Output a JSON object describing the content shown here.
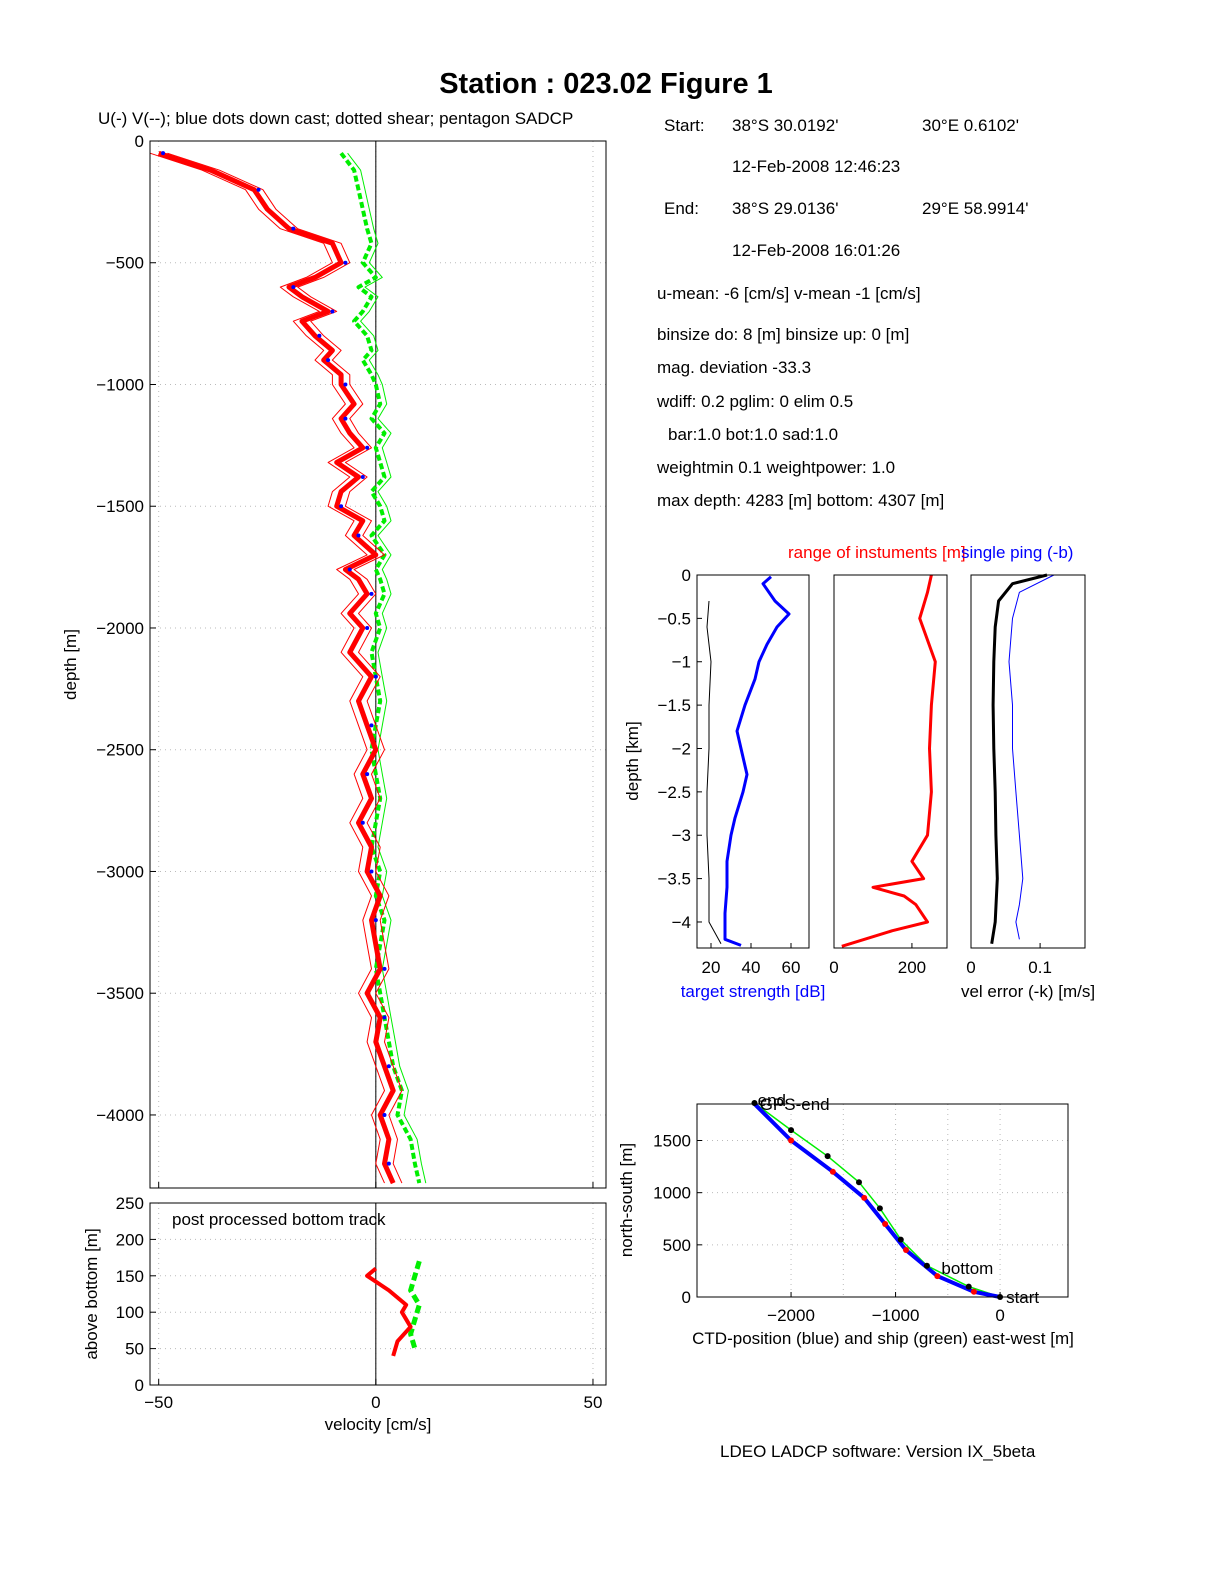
{
  "title": "Station : 023.02  Figure 1",
  "footer": "LDEO LADCP software: Version IX_5beta",
  "info": {
    "start_label": "Start:",
    "start_lat": "38°S 30.0192'",
    "start_lon": "30°E  0.6102'",
    "start_time": "12-Feb-2008 12:46:23",
    "end_label": "End:",
    "end_lat": "38°S 29.0136'",
    "end_lon": "29°E 58.9914'",
    "end_time": "12-Feb-2008 16:01:26",
    "means": "u-mean:  -6 [cm/s]    v-mean  -1 [cm/s]",
    "binsize": "binsize do: 8 [m]  binsize up:  0 [m]",
    "magdev": "mag. deviation -33.3",
    "wdiff": "wdiff: 0.2  pglim: 0  elim 0.5",
    "bar": "bar:1.0 bot:1.0 sad:1.0",
    "weight": "weightmin 0.1  weightpower: 1.0",
    "depth": "max depth: 4283 [m]   bottom: 4307 [m]"
  },
  "colors": {
    "u": "#ff0000",
    "v": "#00ee00",
    "down": "#0000ff",
    "black": "#000000"
  },
  "chart_data": [
    {
      "type": "line",
      "panel": "velocity-profile",
      "title": "U(-) V(--); blue dots down cast; dotted shear; pentagon SADCP",
      "xlabel": "velocity [cm/s]",
      "ylabel": "depth [m]",
      "xlim": [
        -52,
        53
      ],
      "ylim": [
        -4300,
        0
      ],
      "xticks": [
        -50,
        0,
        50
      ],
      "yticks": [
        0,
        -500,
        -1000,
        -1500,
        -2000,
        -2500,
        -3000,
        -3500,
        -4000
      ],
      "grid": true,
      "series": [
        {
          "key": "U",
          "color": "#ff0000",
          "depth": [
            -50,
            -120,
            -200,
            -280,
            -360,
            -420,
            -500,
            -560,
            -600,
            -640,
            -700,
            -740,
            -800,
            -860,
            -900,
            -960,
            -1000,
            -1080,
            -1140,
            -1200,
            -1260,
            -1320,
            -1380,
            -1440,
            -1500,
            -1560,
            -1620,
            -1700,
            -1760,
            -1800,
            -1860,
            -1940,
            -2000,
            -2100,
            -2200,
            -2300,
            -2400,
            -2500,
            -2600,
            -2700,
            -2800,
            -2900,
            -3000,
            -3100,
            -3200,
            -3300,
            -3400,
            -3500,
            -3600,
            -3700,
            -3800,
            -3900,
            -4000,
            -4100,
            -4200,
            -4280
          ],
          "u": [
            -50,
            -38,
            -28,
            -25,
            -20,
            -10,
            -8,
            -14,
            -20,
            -17,
            -11,
            -17,
            -14,
            -10,
            -12,
            -8,
            -8,
            -5,
            -8,
            -6,
            -3,
            -9,
            -4,
            -8,
            -9,
            -3,
            -5,
            0,
            -7,
            -4,
            -2,
            -6,
            -3,
            -6,
            -1,
            -4,
            -2,
            0,
            -3,
            -1,
            -4,
            -1,
            -2,
            1,
            -1,
            0,
            1,
            -2,
            1,
            0,
            2,
            4,
            1,
            3,
            2,
            4
          ]
        },
        {
          "key": "V",
          "color": "#00ee00",
          "depth": [
            -50,
            -120,
            -200,
            -280,
            -360,
            -420,
            -500,
            -560,
            -600,
            -640,
            -700,
            -740,
            -800,
            -860,
            -900,
            -960,
            -1000,
            -1080,
            -1140,
            -1200,
            -1260,
            -1320,
            -1380,
            -1440,
            -1500,
            -1560,
            -1620,
            -1700,
            -1760,
            -1800,
            -1860,
            -1940,
            -2000,
            -2100,
            -2200,
            -2300,
            -2400,
            -2500,
            -2600,
            -2700,
            -2800,
            -2900,
            -3000,
            -3100,
            -3200,
            -3300,
            -3400,
            -3500,
            -3600,
            -3700,
            -3800,
            -3900,
            -4000,
            -4100,
            -4200,
            -4280
          ],
          "v": [
            -8,
            -5,
            -4,
            -3,
            -2,
            -1,
            -3,
            0,
            -4,
            -1,
            -3,
            -5,
            -2,
            -1,
            -3,
            -1,
            0,
            1,
            -1,
            2,
            0,
            1,
            2,
            -1,
            1,
            2,
            -1,
            2,
            0,
            1,
            2,
            0,
            1,
            -1,
            0,
            1,
            0,
            -1,
            0,
            1,
            0,
            -1,
            1,
            0,
            2,
            1,
            0,
            1,
            2,
            3,
            4,
            6,
            5,
            8,
            9,
            10
          ]
        }
      ]
    },
    {
      "type": "line",
      "panel": "bottom-track",
      "title": "post processed bottom track",
      "ylabel": "above bottom [m]",
      "xlim": [
        -52,
        53
      ],
      "ylim": [
        0,
        250
      ],
      "yticks": [
        0,
        50,
        100,
        150,
        200,
        250
      ],
      "series": [
        {
          "key": "U",
          "height": [
            160,
            150,
            130,
            110,
            100,
            80,
            60,
            40
          ],
          "u": [
            0,
            -2,
            3,
            7,
            6,
            8,
            5,
            4
          ]
        },
        {
          "key": "V",
          "height": [
            170,
            150,
            130,
            110,
            90,
            70,
            50
          ],
          "v": [
            10,
            9,
            8,
            10,
            9,
            8,
            9
          ]
        }
      ]
    },
    {
      "type": "line",
      "panel": "target-strength",
      "xlabel": "target strength [dB]",
      "ylabel": "depth [km]",
      "xlim": [
        13,
        69
      ],
      "ylim": [
        -4.3,
        0
      ],
      "xticks": [
        20,
        40,
        60
      ],
      "yticks": [
        0,
        -0.5,
        -1,
        -1.5,
        -2,
        -2.5,
        -3,
        -3.5,
        -4
      ],
      "series": [
        {
          "key": "target",
          "color": "#0000ff",
          "depth": [
            -0.02,
            -0.1,
            -0.3,
            -0.45,
            -0.6,
            -0.8,
            -1.0,
            -1.2,
            -1.5,
            -1.8,
            -2.0,
            -2.3,
            -2.5,
            -2.8,
            -3.0,
            -3.3,
            -3.6,
            -3.9,
            -4.2,
            -4.27
          ],
          "value": [
            50,
            46,
            52,
            59,
            53,
            48,
            44,
            42,
            37,
            33,
            35,
            38,
            36,
            32,
            30,
            28,
            28,
            27,
            27,
            35
          ]
        },
        {
          "key": "range-ref",
          "color": "#000000",
          "depth": [
            -0.3,
            -0.6,
            -1.0,
            -1.5,
            -2.0,
            -2.5,
            -3.0,
            -3.5,
            -4.0,
            -4.25
          ],
          "value": [
            19,
            18,
            20,
            19,
            19,
            18,
            18,
            19,
            19,
            25
          ]
        }
      ]
    },
    {
      "type": "line",
      "panel": "range",
      "title": "range of instuments [m]",
      "xlim": [
        0,
        290
      ],
      "ylim": [
        -4.3,
        0
      ],
      "xticks": [
        0,
        200
      ],
      "series": [
        {
          "key": "range",
          "color": "#ff0000",
          "depth": [
            0,
            -0.2,
            -0.5,
            -1.0,
            -1.5,
            -2.0,
            -2.5,
            -3.0,
            -3.3,
            -3.5,
            -3.6,
            -3.7,
            -3.8,
            -4.0,
            -4.1,
            -4.28
          ],
          "value": [
            250,
            240,
            220,
            260,
            250,
            245,
            250,
            240,
            200,
            230,
            100,
            180,
            210,
            240,
            150,
            20
          ]
        }
      ]
    },
    {
      "type": "line",
      "panel": "vel-error",
      "title": "single ping (-b)",
      "xlabel": "vel error (-k) [m/s]",
      "xlim": [
        0,
        0.165
      ],
      "ylim": [
        -4.3,
        0
      ],
      "xticks": [
        0,
        0.1
      ],
      "series": [
        {
          "key": "vel-error",
          "color": "#000000",
          "depth": [
            0,
            -0.1,
            -0.3,
            -0.6,
            -1.0,
            -1.5,
            -2.0,
            -2.5,
            -3.0,
            -3.5,
            -4.0,
            -4.25
          ],
          "value": [
            0.11,
            0.06,
            0.04,
            0.035,
            0.033,
            0.032,
            0.033,
            0.035,
            0.036,
            0.038,
            0.035,
            0.03
          ]
        },
        {
          "key": "single-ping",
          "color": "#0000ff",
          "depth": [
            0,
            -0.2,
            -0.5,
            -1.0,
            -1.5,
            -2.0,
            -2.5,
            -3.0,
            -3.5,
            -3.8,
            -4.0,
            -4.2
          ],
          "value": [
            0.12,
            0.07,
            0.06,
            0.055,
            0.06,
            0.06,
            0.065,
            0.07,
            0.075,
            0.07,
            0.065,
            0.07
          ]
        }
      ]
    },
    {
      "type": "line",
      "panel": "position",
      "xlabel": "CTD-position (blue) and ship (green) east-west [m]",
      "ylabel": "north-south [m]",
      "xlim": [
        -2900,
        650
      ],
      "ylim": [
        0,
        1850
      ],
      "xticks": [
        -2000,
        -1000,
        0
      ],
      "yticks": [
        0,
        500,
        1000,
        1500
      ],
      "annotations": [
        "start",
        "bottom",
        "end",
        "GPS-end"
      ],
      "series": [
        {
          "key": "CTD",
          "color": "#0000ff",
          "x": [
            0,
            -250,
            -600,
            -900,
            -1100,
            -1300,
            -1600,
            -2000,
            -2350
          ],
          "y": [
            0,
            50,
            200,
            450,
            700,
            950,
            1200,
            1500,
            1850
          ]
        },
        {
          "key": "ship",
          "color": "#00ee00",
          "x": [
            0,
            -300,
            -700,
            -950,
            -1150,
            -1350,
            -1650,
            -2000,
            -2350
          ],
          "y": [
            0,
            100,
            300,
            550,
            850,
            1100,
            1350,
            1600,
            1860
          ]
        }
      ]
    }
  ]
}
